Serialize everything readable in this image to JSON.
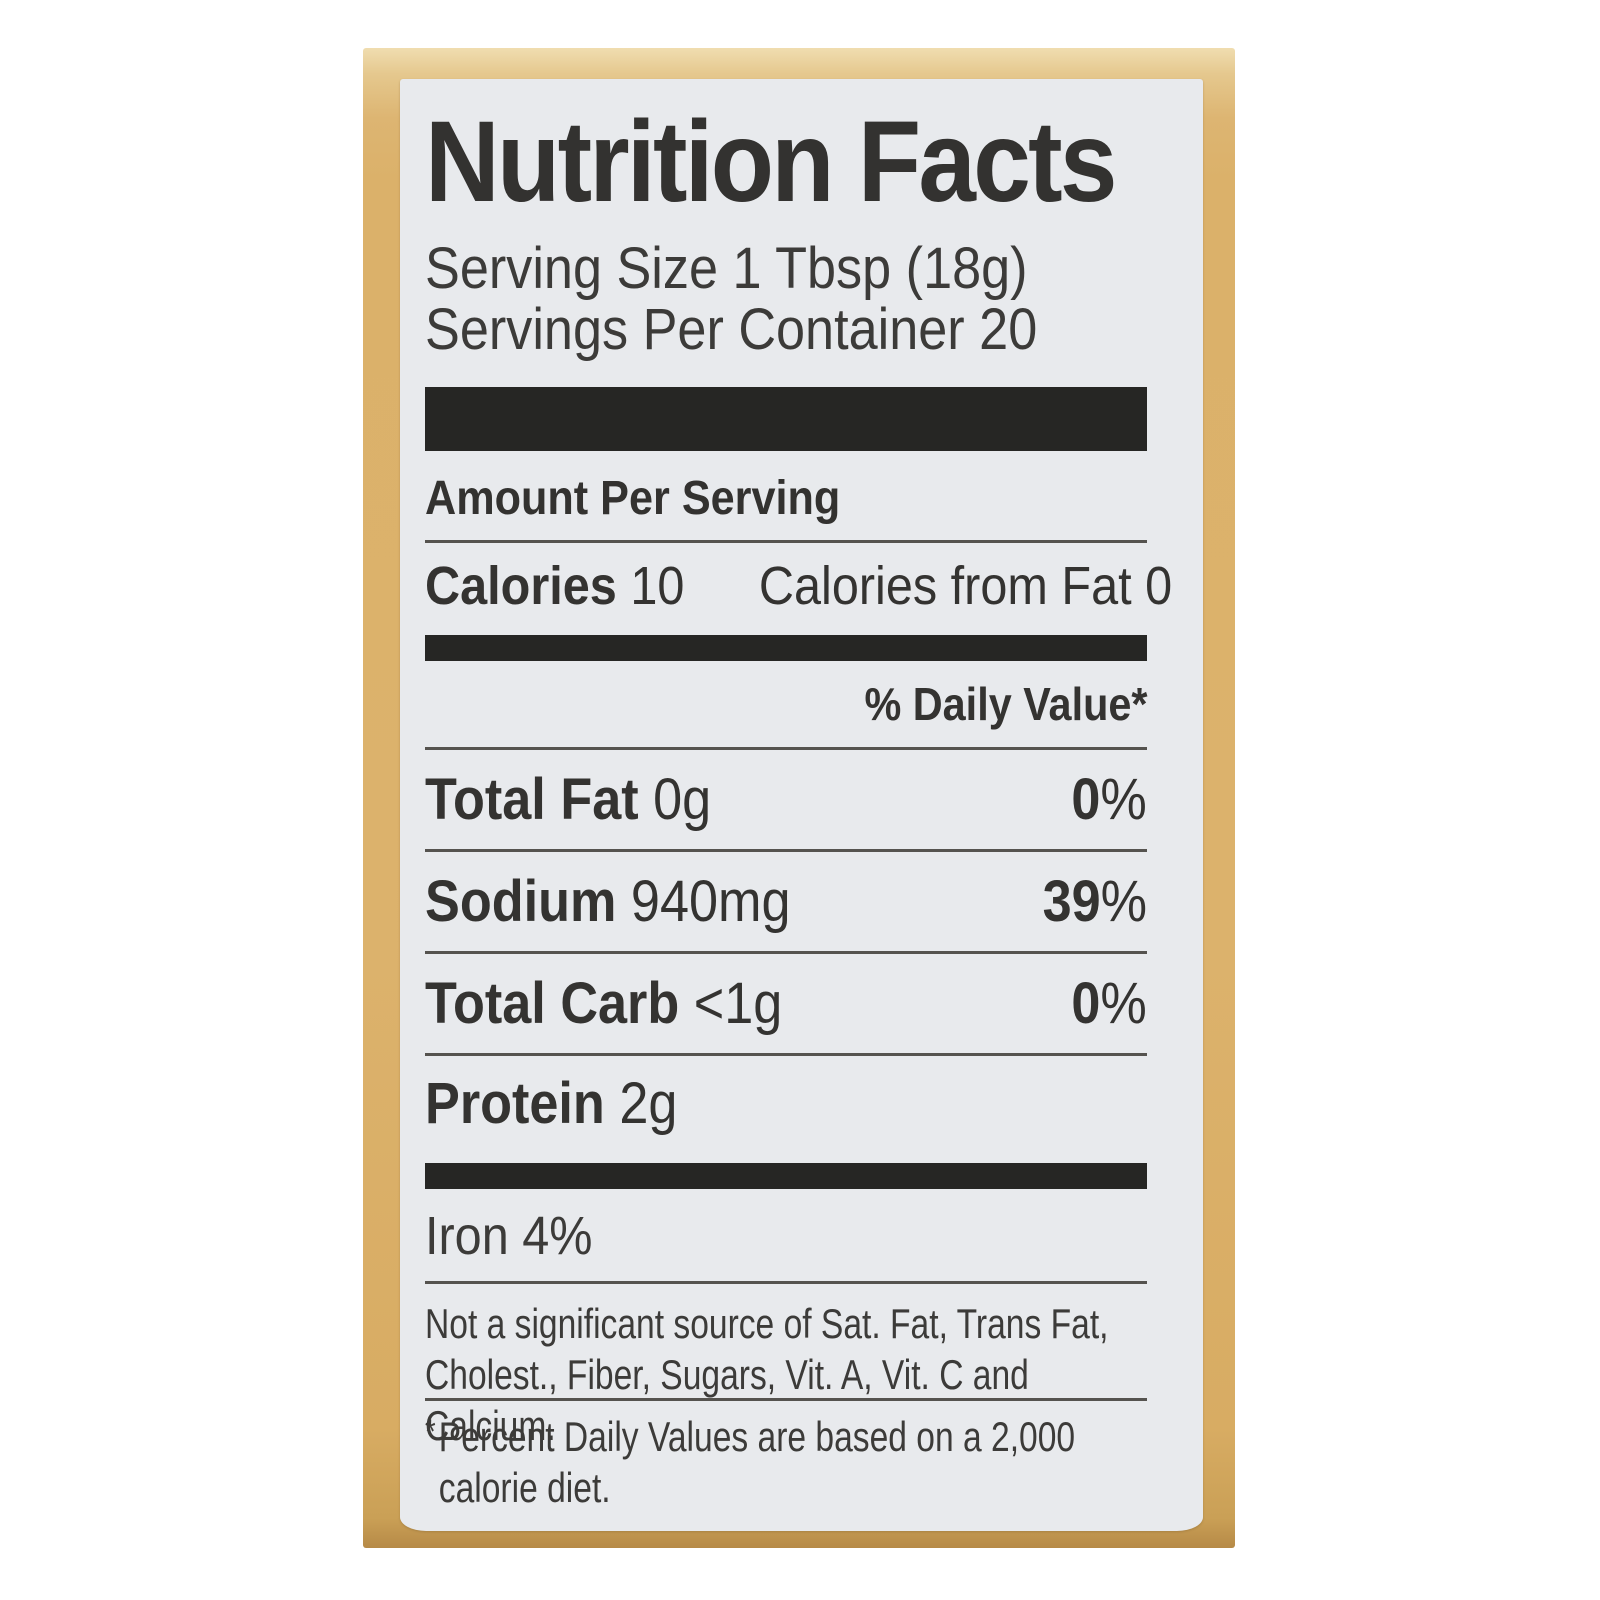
{
  "colors": {
    "bottle_gold": "#dcb26c",
    "bottle_gold_highlight": "#f0ddb0",
    "bottle_gold_shadow": "#b68a47",
    "label_background": "#e8eaed",
    "ink": "#343331",
    "bar_black": "#262624"
  },
  "label": {
    "title": "Nutrition Facts",
    "serving_size": "Serving Size 1 Tbsp (18g)",
    "servings_per_container": "Servings Per Container 20",
    "amount_per_serving": "Amount Per Serving",
    "calories": {
      "label": "Calories",
      "value": "10",
      "from_fat": "Calories from Fat 0"
    },
    "daily_value_header": "% Daily Value*",
    "rows": [
      {
        "name": "Total Fat",
        "amount": "0g",
        "dv_num": "0",
        "dv_sym": "%"
      },
      {
        "name": "Sodium",
        "amount": "940mg",
        "dv_num": "39",
        "dv_sym": "%"
      },
      {
        "name": "Total Carb",
        "amount": "<1g",
        "dv_num": "0",
        "dv_sym": "%"
      },
      {
        "name": "Protein",
        "amount": "2g"
      }
    ],
    "micronutrients": "Iron 4%",
    "not_significant": "Not a significant source of Sat. Fat, Trans Fat, Cholest., Fiber, Sugars, Vit. A, Vit. C and Calcium.",
    "footnote_marker": "*",
    "footnote": "Percent Daily Values are based on a 2,000 calorie diet."
  }
}
